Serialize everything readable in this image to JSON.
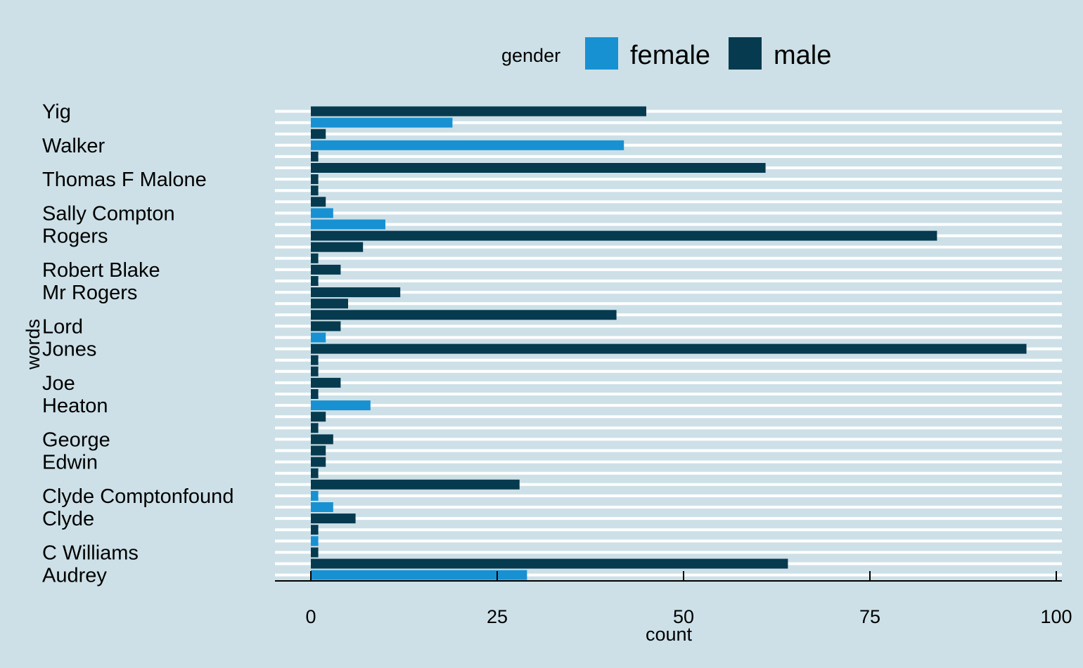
{
  "chart_data": {
    "type": "bar",
    "orientation": "horizontal",
    "xlabel": "count",
    "ylabel": "words",
    "xlim": [
      -4.8,
      100.6
    ],
    "xticks": [
      0,
      25,
      50,
      75,
      100
    ],
    "grid": "horizontal white lines at each bar row",
    "background": "#cde0e7",
    "legend": {
      "title": "gender",
      "position": "top",
      "entries": [
        {
          "label": "female",
          "color": "#1891d2"
        },
        {
          "label": "male",
          "color": "#063a4f"
        }
      ]
    },
    "y_labels": [
      "Yig",
      "Walker",
      "Thomas F Malone",
      "Sally Compton",
      "Rogers",
      "Robert Blake",
      "Mr Rogers",
      "Lord",
      "Jones",
      "Joe",
      "Heaton",
      "George",
      "Edwin",
      "Clyde Comptonfound",
      "Clyde",
      "C Williams",
      "Audrey"
    ],
    "y_label_rows": [
      0,
      3,
      6,
      9,
      11,
      14,
      16,
      19,
      21,
      24,
      26,
      29,
      31,
      34,
      36,
      39,
      41
    ],
    "bars": [
      {
        "gender": "male",
        "value": 45
      },
      {
        "gender": "female",
        "value": 19
      },
      {
        "gender": "male",
        "value": 2
      },
      {
        "gender": "female",
        "value": 42
      },
      {
        "gender": "male",
        "value": 1
      },
      {
        "gender": "male",
        "value": 61
      },
      {
        "gender": "male",
        "value": 1
      },
      {
        "gender": "male",
        "value": 1
      },
      {
        "gender": "male",
        "value": 2
      },
      {
        "gender": "female",
        "value": 3
      },
      {
        "gender": "female",
        "value": 10
      },
      {
        "gender": "male",
        "value": 84
      },
      {
        "gender": "male",
        "value": 7
      },
      {
        "gender": "male",
        "value": 1
      },
      {
        "gender": "male",
        "value": 4
      },
      {
        "gender": "male",
        "value": 1
      },
      {
        "gender": "male",
        "value": 12
      },
      {
        "gender": "male",
        "value": 5
      },
      {
        "gender": "male",
        "value": 41
      },
      {
        "gender": "male",
        "value": 4
      },
      {
        "gender": "female",
        "value": 2
      },
      {
        "gender": "male",
        "value": 96
      },
      {
        "gender": "male",
        "value": 1
      },
      {
        "gender": "male",
        "value": 1
      },
      {
        "gender": "male",
        "value": 4
      },
      {
        "gender": "male",
        "value": 1
      },
      {
        "gender": "female",
        "value": 8
      },
      {
        "gender": "male",
        "value": 2
      },
      {
        "gender": "male",
        "value": 1
      },
      {
        "gender": "male",
        "value": 3
      },
      {
        "gender": "male",
        "value": 2
      },
      {
        "gender": "male",
        "value": 2
      },
      {
        "gender": "male",
        "value": 1
      },
      {
        "gender": "male",
        "value": 28
      },
      {
        "gender": "female",
        "value": 1
      },
      {
        "gender": "female",
        "value": 3
      },
      {
        "gender": "male",
        "value": 6
      },
      {
        "gender": "male",
        "value": 1
      },
      {
        "gender": "female",
        "value": 1
      },
      {
        "gender": "male",
        "value": 1
      },
      {
        "gender": "male",
        "value": 64
      },
      {
        "gender": "female",
        "value": 29
      }
    ]
  }
}
